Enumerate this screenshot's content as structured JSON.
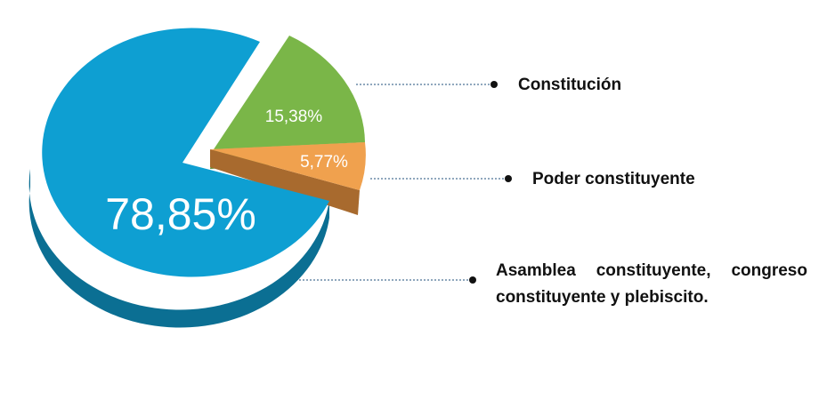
{
  "chart_data": {
    "type": "pie",
    "title": "",
    "slices": [
      {
        "label": "Asamblea constituyente, congreso constituyente y plebiscito.",
        "value": 78.85,
        "value_label": "78,85%",
        "color": "#0e9fd2",
        "side_color": "#0b6f93"
      },
      {
        "label": "Constitución",
        "value": 15.38,
        "value_label": "15,38%",
        "color": "#7ab648",
        "side_color": "#5a8a33"
      },
      {
        "label": "Poder constituyente",
        "value": 5.77,
        "value_label": "5,77%",
        "color": "#f0a14e",
        "side_color": "#a86a2e"
      }
    ],
    "legend_placement": "right"
  }
}
